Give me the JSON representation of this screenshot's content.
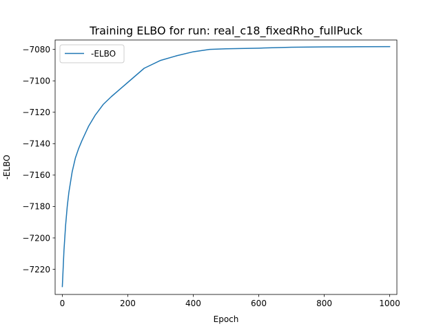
{
  "chart_data": {
    "type": "line",
    "title": "Training ELBO for run: real_c18_fixedRho_fullPuck",
    "xlabel": "Epoch",
    "ylabel": "-ELBO",
    "xlim": [
      -22,
      1022
    ],
    "ylim": [
      -7236,
      -7074
    ],
    "x_ticks": [
      0,
      200,
      400,
      600,
      800,
      1000
    ],
    "y_ticks": [
      -7220,
      -7200,
      -7180,
      -7160,
      -7140,
      -7120,
      -7100,
      -7080
    ],
    "legend_position": "upper left",
    "grid": false,
    "series": [
      {
        "name": "-ELBO",
        "color": "#1f77b4",
        "x": [
          0,
          5,
          10,
          15,
          20,
          30,
          40,
          50,
          60,
          80,
          100,
          125,
          150,
          200,
          250,
          300,
          350,
          400,
          450,
          500,
          600,
          700,
          800,
          900,
          1000
        ],
        "y": [
          -7231,
          -7208,
          -7192,
          -7180,
          -7171,
          -7158,
          -7149,
          -7143,
          -7138,
          -7129,
          -7122,
          -7115,
          -7110,
          -7101,
          -7092,
          -7087,
          -7084,
          -7081.5,
          -7080,
          -7079.6,
          -7079.2,
          -7078.6,
          -7078.4,
          -7078.3,
          -7078.2
        ]
      }
    ]
  }
}
